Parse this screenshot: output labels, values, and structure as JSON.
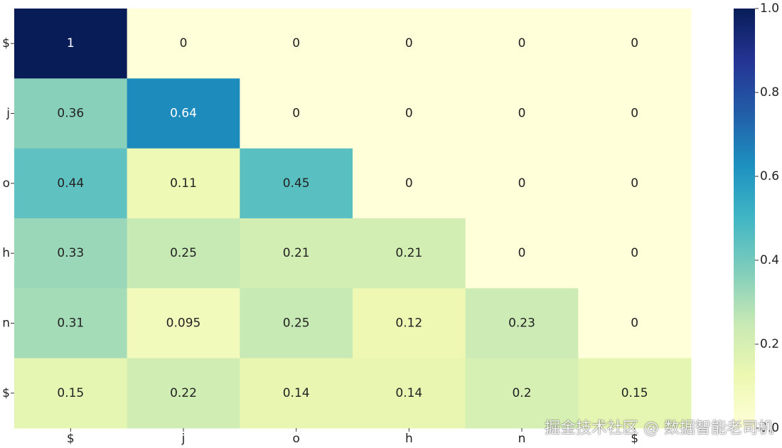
{
  "chart_data": {
    "type": "heatmap",
    "row_labels": [
      "$",
      "j",
      "o",
      "h",
      "n",
      "$"
    ],
    "col_labels": [
      "$",
      "j",
      "o",
      "h",
      "n",
      "$"
    ],
    "values": [
      [
        1,
        0,
        0,
        0,
        0,
        0
      ],
      [
        0.36,
        0.64,
        0,
        0,
        0,
        0
      ],
      [
        0.44,
        0.11,
        0.45,
        0,
        0,
        0
      ],
      [
        0.33,
        0.25,
        0.21,
        0.21,
        0,
        0
      ],
      [
        0.31,
        0.095,
        0.25,
        0.12,
        0.23,
        0
      ],
      [
        0.15,
        0.22,
        0.14,
        0.14,
        0.2,
        0.15
      ]
    ],
    "colorbar": {
      "min": 0.0,
      "max": 1.0,
      "ticks": [
        "0.0",
        "0.2",
        "0.4",
        "0.6",
        "0.8",
        "1.0"
      ],
      "colormap": "YlGnBu"
    },
    "title": "",
    "xlabel": "",
    "ylabel": ""
  },
  "watermark": "掘金技术社区 @ 数据智能老司机"
}
